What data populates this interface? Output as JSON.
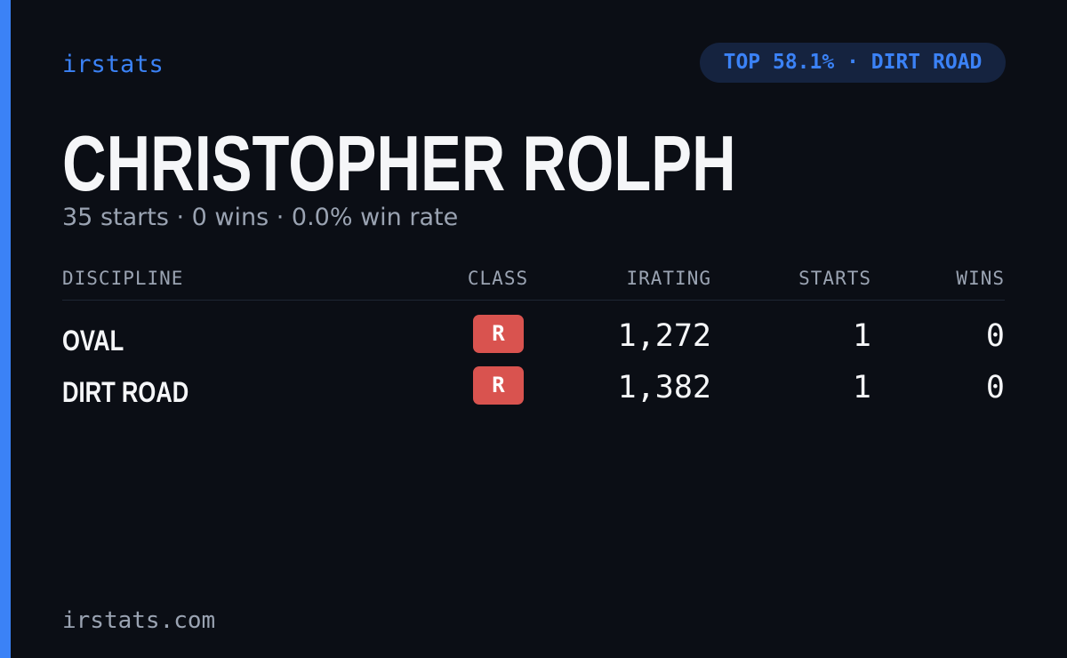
{
  "brand": "irstats",
  "badge": "TOP 58.1% · DIRT ROAD",
  "driver": {
    "name": "CHRISTOPHER ROLPH",
    "summary": "35 starts · 0 wins · 0.0% win rate"
  },
  "table": {
    "headers": [
      "DISCIPLINE",
      "CLASS",
      "IRATING",
      "STARTS",
      "WINS"
    ],
    "rows": [
      [
        "OVAL",
        "R",
        "1,272",
        "1",
        "0"
      ],
      [
        "DIRT ROAD",
        "R",
        "1,382",
        "1",
        "0"
      ]
    ]
  },
  "footer": "irstats.com"
}
